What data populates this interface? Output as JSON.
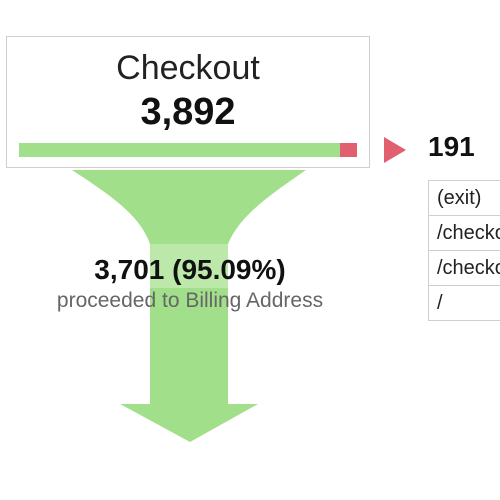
{
  "step": {
    "title": "Checkout",
    "count": "3,892",
    "proceed_fraction": 0.9509
  },
  "proceed": {
    "value": "3,701 (95.09%)",
    "label": "proceeded to Billing Address"
  },
  "exit": {
    "count": "191",
    "destinations": [
      "(exit)",
      "/checkout",
      "/checkout",
      "/"
    ]
  },
  "colors": {
    "proceed": "#a2df8a",
    "exit": "#e06070",
    "border": "#cfcfcf"
  }
}
